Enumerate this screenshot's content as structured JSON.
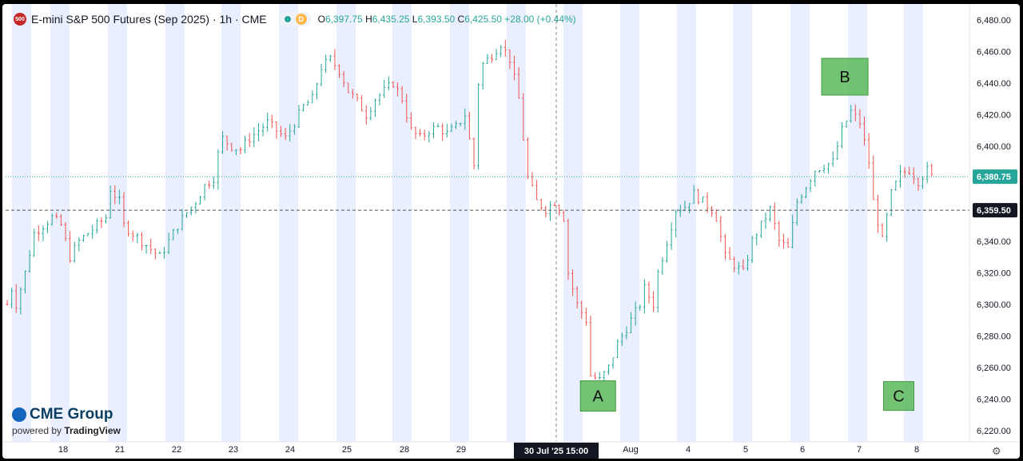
{
  "header": {
    "badge": "500",
    "title": "E-mini S&P 500 Futures (Sep 2025) · 1h · CME",
    "status_letter": "D",
    "ohlc": {
      "o_label": "O",
      "o": "6,397.75",
      "h_label": "H",
      "h": "6,435.25",
      "l_label": "L",
      "l": "6,393.50",
      "c_label": "C",
      "c": "6,425.50",
      "change": "+28.00 (+0.44%)"
    }
  },
  "logo": {
    "brand": "CME Group",
    "powered": "powered by",
    "platform": "TradingView"
  },
  "colors": {
    "up": "#26a69a",
    "down": "#ef5350",
    "session_band": "#e9efff",
    "price_tag": "#26a69a",
    "prev_close_tag": "#131722",
    "annotation_box": "#5cb85c"
  },
  "chart_data": {
    "type": "candlestick",
    "ylim": [
      6213,
      6490
    ],
    "y_ticks": [
      6220,
      6240,
      6260,
      6280,
      6300,
      6320,
      6340,
      6360,
      6380,
      6400,
      6420,
      6440,
      6460,
      6480
    ],
    "y_tick_labels": [
      "6,220.00",
      "6,240.00",
      "6,260.00",
      "6,280.00",
      "6,300.00",
      "6,320.00",
      "6,340.00",
      "6,360.00",
      "6,380.00",
      "6,400.00",
      "6,420.00",
      "6,440.00",
      "6,460.00",
      "6,480.00"
    ],
    "x_tick_labels": [
      "18",
      "21",
      "22",
      "23",
      "24",
      "25",
      "28",
      "29",
      "30 Jul '25",
      "Aug",
      "4",
      "5",
      "6",
      "7",
      "8"
    ],
    "crosshair_x_label": "30 Jul '25   15:00",
    "current_price": 6380.75,
    "current_price_label": "6,380.75",
    "prev_close": 6359.5,
    "prev_close_label": "6,359.50",
    "price_path": [
      [
        0,
        6300
      ],
      [
        1,
        6310
      ],
      [
        2,
        6300
      ],
      [
        4,
        6320
      ],
      [
        6,
        6345
      ],
      [
        8,
        6350
      ],
      [
        10,
        6355
      ],
      [
        12,
        6350
      ],
      [
        13,
        6340
      ],
      [
        14,
        6330
      ],
      [
        16,
        6340
      ],
      [
        18,
        6345
      ],
      [
        20,
        6350
      ],
      [
        22,
        6355
      ],
      [
        23,
        6373
      ],
      [
        25,
        6365
      ],
      [
        26,
        6350
      ],
      [
        28,
        6345
      ],
      [
        30,
        6340
      ],
      [
        32,
        6335
      ],
      [
        34,
        6330
      ],
      [
        36,
        6340
      ],
      [
        38,
        6350
      ],
      [
        40,
        6358
      ],
      [
        42,
        6365
      ],
      [
        44,
        6375
      ],
      [
        46,
        6380
      ],
      [
        47,
        6395
      ],
      [
        48,
        6405
      ],
      [
        50,
        6400
      ],
      [
        52,
        6398
      ],
      [
        54,
        6405
      ],
      [
        56,
        6410
      ],
      [
        58,
        6415
      ],
      [
        60,
        6410
      ],
      [
        62,
        6405
      ],
      [
        64,
        6415
      ],
      [
        66,
        6425
      ],
      [
        68,
        6430
      ],
      [
        70,
        6450
      ],
      [
        72,
        6455
      ],
      [
        74,
        6448
      ],
      [
        76,
        6435
      ],
      [
        78,
        6428
      ],
      [
        80,
        6420
      ],
      [
        82,
        6430
      ],
      [
        84,
        6435
      ],
      [
        86,
        6440
      ],
      [
        88,
        6430
      ],
      [
        90,
        6410
      ],
      [
        92,
        6405
      ],
      [
        94,
        6410
      ],
      [
        96,
        6412
      ],
      [
        98,
        6408
      ],
      [
        100,
        6412
      ],
      [
        102,
        6420
      ],
      [
        104,
        6388
      ],
      [
        105,
        6440
      ],
      [
        106,
        6452
      ],
      [
        108,
        6458
      ],
      [
        110,
        6465
      ],
      [
        112,
        6455
      ],
      [
        114,
        6430
      ],
      [
        116,
        6380
      ],
      [
        118,
        6365
      ],
      [
        120,
        6360
      ],
      [
        122,
        6365
      ],
      [
        124,
        6355
      ],
      [
        125,
        6320
      ],
      [
        127,
        6300
      ],
      [
        129,
        6290
      ],
      [
        130,
        6255
      ],
      [
        132,
        6252
      ],
      [
        134,
        6260
      ],
      [
        136,
        6275
      ],
      [
        138,
        6285
      ],
      [
        140,
        6295
      ],
      [
        141,
        6300
      ],
      [
        142,
        6310
      ],
      [
        144,
        6300
      ],
      [
        145,
        6320
      ],
      [
        147,
        6340
      ],
      [
        149,
        6360
      ],
      [
        151,
        6362
      ],
      [
        153,
        6370
      ],
      [
        155,
        6365
      ],
      [
        157,
        6360
      ],
      [
        158,
        6355
      ],
      [
        160,
        6330
      ],
      [
        162,
        6325
      ],
      [
        164,
        6320
      ],
      [
        166,
        6340
      ],
      [
        168,
        6350
      ],
      [
        170,
        6360
      ],
      [
        172,
        6340
      ],
      [
        174,
        6335
      ],
      [
        176,
        6365
      ],
      [
        178,
        6375
      ],
      [
        180,
        6385
      ],
      [
        182,
        6388
      ],
      [
        184,
        6390
      ],
      [
        186,
        6410
      ],
      [
        188,
        6422
      ],
      [
        190,
        6415
      ],
      [
        192,
        6390
      ],
      [
        193,
        6365
      ],
      [
        195,
        6340
      ],
      [
        197,
        6370
      ],
      [
        199,
        6382
      ],
      [
        201,
        6385
      ],
      [
        203,
        6378
      ],
      [
        205,
        6385
      ],
      [
        206,
        6380.75
      ]
    ],
    "annotations": [
      {
        "label": "A",
        "x": 132,
        "y": 6242
      },
      {
        "label": "B",
        "x": 187,
        "y": 6444
      },
      {
        "label": "C",
        "x": 199,
        "y": 6242
      }
    ]
  }
}
